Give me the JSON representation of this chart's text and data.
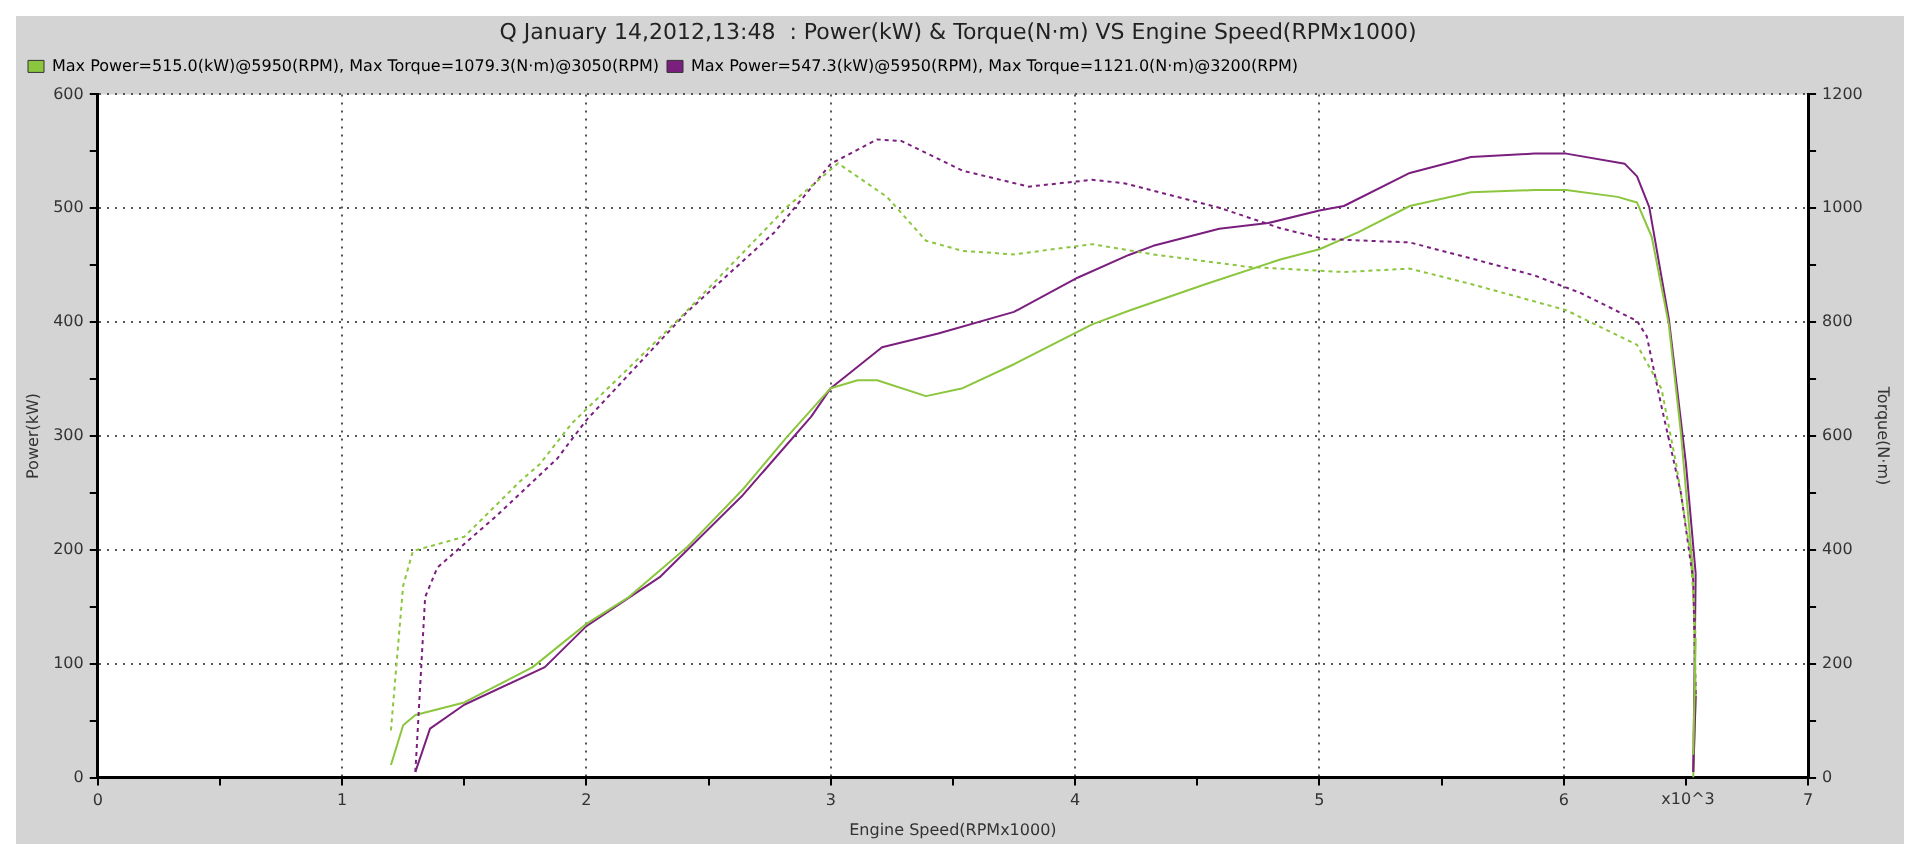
{
  "chart_data": {
    "type": "line",
    "title": "Q January 14,2012,13:48  : Power(kW) & Torque(N·m) VS Engine Speed(RPMx1000)",
    "xlabel": "Engine Speed(RPMx1000)",
    "ylabel": "Power(kW)",
    "y2label": "Torque(N·m)",
    "annotations": [
      "x10^3"
    ],
    "xlim": [
      0,
      7
    ],
    "xticks": [
      0,
      {
        "value": 0.5,
        "label": null
      },
      1,
      {
        "value": 1.5,
        "label": null
      },
      2,
      {
        "value": 2.5,
        "label": null
      },
      3,
      {
        "value": 3.5,
        "label": null
      },
      4,
      {
        "value": 4.5,
        "label": null
      },
      5,
      {
        "value": 5.5,
        "label": null
      },
      6,
      {
        "value": 6.5,
        "label": null
      },
      7
    ],
    "ylim": [
      0,
      600
    ],
    "yticks": [
      0,
      {
        "value": 50,
        "label": null
      },
      100,
      {
        "value": 150,
        "label": null
      },
      200,
      {
        "value": 250,
        "label": null
      },
      300,
      {
        "value": 350,
        "label": null
      },
      400,
      {
        "value": 450,
        "label": null
      },
      500,
      {
        "value": 550,
        "label": null
      },
      600
    ],
    "y2lim": [
      0,
      1200
    ],
    "y2ticks": [
      0,
      {
        "value": 100,
        "label": null
      },
      200,
      {
        "value": 300,
        "label": null
      },
      400,
      {
        "value": 500,
        "label": null
      },
      600,
      {
        "value": 700,
        "label": null
      },
      800,
      {
        "value": 900,
        "label": null
      },
      1000,
      {
        "value": 1100,
        "label": null
      },
      1200
    ],
    "grid": true,
    "legend": "top left",
    "marker": "none",
    "series": [
      {
        "name": "Max Power=515.0(kW)@5950(RPM), Max Torque=1079.3(N·m)@3050(RPM)",
        "color": "#8cc63e",
        "line_style": "solid",
        "x": [
          1.2,
          1.25,
          1.3,
          1.5,
          1.78,
          2.0,
          2.17,
          2.41,
          2.64,
          2.82,
          3.0,
          3.11,
          3.19,
          3.39,
          3.54,
          3.75,
          4.07,
          4.22,
          4.53,
          4.84,
          5.0,
          5.16,
          5.37,
          5.62,
          5.88,
          6.01,
          6.22,
          6.3,
          6.36,
          6.43,
          6.48,
          6.53,
          6.54,
          6.53
        ],
        "values": [
          11,
          46,
          55,
          66,
          97,
          135,
          158,
          202,
          253,
          299,
          342,
          349,
          349,
          335,
          342,
          363,
          398,
          410,
          433,
          455,
          464,
          479,
          502,
          514,
          516,
          516,
          510,
          505,
          475,
          398,
          302,
          179,
          72,
          0
        ]
      },
      {
        "name": "Max Power=547.3(kW)@5950(RPM), Max Torque=1121.0(N·m)@3200(RPM)",
        "color": "#7b1f7f",
        "line_style": "solid",
        "x": [
          1.3,
          1.36,
          1.5,
          1.83,
          2.0,
          2.3,
          2.64,
          2.92,
          3.0,
          3.21,
          3.44,
          3.75,
          4.01,
          4.22,
          4.32,
          4.59,
          4.79,
          5.0,
          5.1,
          5.37,
          5.62,
          5.88,
          6.01,
          6.25,
          6.3,
          6.35,
          6.43,
          6.5,
          6.54,
          6.53
        ],
        "values": [
          5,
          43,
          64,
          97,
          133,
          176,
          248,
          317,
          342,
          378,
          390,
          409,
          439,
          459,
          467,
          482,
          487,
          498,
          502,
          531,
          545,
          548,
          548,
          539,
          528,
          501,
          403,
          276,
          179,
          5
        ]
      },
      {
        "color": "#8cc63e",
        "line_style": "dashed",
        "axis": "y2",
        "x": [
          1.2,
          1.25,
          1.29,
          1.5,
          1.73,
          1.81,
          1.94,
          2.38,
          2.82,
          3.03,
          3.23,
          3.39,
          3.54,
          3.75,
          4.07,
          4.32,
          4.71,
          5.1,
          5.37,
          5.62,
          6.01,
          6.3,
          6.4,
          6.46,
          6.52,
          6.54,
          6.53
        ],
        "values": [
          83,
          337,
          398,
          423,
          521,
          551,
          622,
          806,
          1002,
          1079,
          1020,
          943,
          925,
          919,
          937,
          919,
          897,
          888,
          894,
          867,
          821,
          760,
          683,
          551,
          389,
          245,
          40
        ]
      },
      {
        "color": "#7b1f7f",
        "line_style": "dashed",
        "axis": "y2",
        "x": [
          1.3,
          1.34,
          1.39,
          1.63,
          1.88,
          2.0,
          2.41,
          2.77,
          3.0,
          3.19,
          3.29,
          3.54,
          3.81,
          4.07,
          4.2,
          4.59,
          4.84,
          5.02,
          5.37,
          5.62,
          5.88,
          6.07,
          6.3,
          6.34,
          6.4,
          6.48,
          6.53,
          6.54,
          6.53
        ],
        "values": [
          10,
          317,
          369,
          459,
          560,
          628,
          817,
          958,
          1078,
          1121,
          1118,
          1066,
          1038,
          1050,
          1044,
          1001,
          965,
          946,
          940,
          912,
          882,
          851,
          802,
          775,
          652,
          499,
          346,
          144,
          10
        ]
      }
    ]
  }
}
